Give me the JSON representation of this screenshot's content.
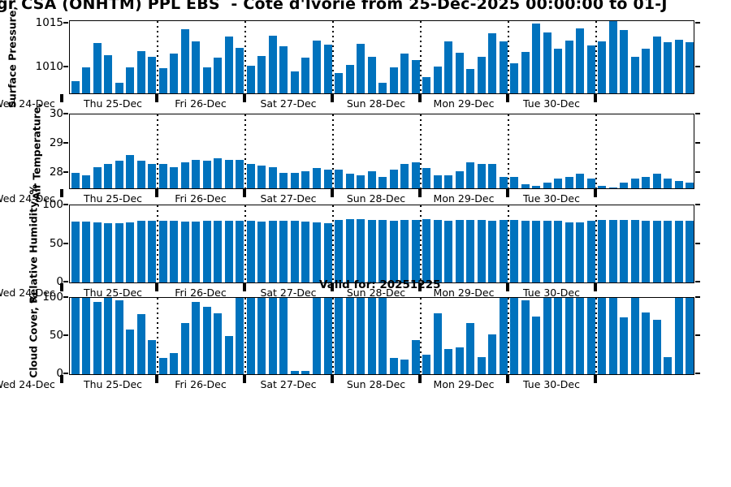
{
  "title": "gr CSA (ONHTM) PPL EBS  - Cote d'Ivorie from 25-Dec-2025 00:00:00 to 01-J",
  "annotation": "Valid for: 20251225",
  "bar_color": "#0072BD",
  "x_axis": {
    "left_edge_label": "Wed 24-Dec",
    "day_labels": [
      "Thu 25-Dec",
      "Fri 26-Dec",
      "Sat 27-Dec",
      "Sun 28-Dec",
      "Mon 29-Dec",
      "Tue 30-Dec"
    ]
  },
  "chart_data": [
    {
      "type": "bar",
      "name": "surface-pressure",
      "ylabel": "Surface Pressure,",
      "yticks": [
        1015,
        1010
      ],
      "ylim": [
        1007,
        1015.3
      ],
      "values": [
        1008.4,
        1010.0,
        1012.8,
        1011.4,
        1008.2,
        1010.0,
        1011.9,
        1011.2,
        1009.9,
        1011.6,
        1014.4,
        1013.0,
        1010.0,
        1011.1,
        1013.5,
        1012.2,
        1010.2,
        1011.3,
        1013.6,
        1012.4,
        1009.5,
        1011.1,
        1013.1,
        1012.6,
        1009.3,
        1010.3,
        1012.7,
        1011.2,
        1008.2,
        1010.0,
        1011.6,
        1010.8,
        1008.9,
        1010.1,
        1013.0,
        1011.7,
        1009.8,
        1011.2,
        1013.9,
        1013.0,
        1010.5,
        1011.8,
        1015.0,
        1014.0,
        1012.1,
        1013.1,
        1014.5,
        1012.5,
        1013.0,
        1015.4,
        1014.3,
        1011.2,
        1012.1,
        1013.5,
        1012.9,
        1013.2,
        1012.9
      ]
    },
    {
      "type": "bar",
      "name": "air-temperature",
      "ylabel": "Air Temperature,",
      "yticks": [
        30,
        29,
        28
      ],
      "ylim": [
        27.46,
        30
      ],
      "values": [
        28.0,
        27.9,
        28.2,
        28.3,
        28.4,
        28.6,
        28.4,
        28.3,
        28.3,
        28.2,
        28.35,
        28.45,
        28.4,
        28.5,
        28.45,
        28.45,
        28.3,
        28.25,
        28.2,
        28.0,
        28.0,
        28.05,
        28.15,
        28.1,
        28.1,
        27.95,
        27.9,
        28.05,
        27.85,
        28.1,
        28.3,
        28.35,
        28.15,
        27.9,
        27.9,
        28.05,
        28.35,
        28.3,
        28.3,
        27.85,
        27.85,
        27.6,
        27.55,
        27.65,
        27.8,
        27.85,
        27.95,
        27.8,
        27.55,
        27.5,
        27.65,
        27.8,
        27.85,
        27.95,
        27.8,
        27.7,
        27.65
      ]
    },
    {
      "type": "bar",
      "name": "relative-humidity",
      "ylabel": "Relative Humidity, %",
      "yticks": [
        100,
        50,
        0
      ],
      "ylim": [
        0,
        100
      ],
      "values": [
        79,
        79,
        78,
        77,
        77,
        78,
        80,
        80,
        80,
        80,
        79,
        79,
        80,
        80,
        80,
        80,
        80,
        79,
        80,
        80,
        80,
        79,
        78,
        77,
        81,
        82,
        82,
        81,
        81,
        80,
        81,
        81,
        82,
        81,
        80,
        81,
        81,
        81,
        80,
        81,
        81,
        80,
        80,
        80,
        80,
        78,
        78,
        80,
        81,
        81,
        81,
        81,
        80,
        80,
        80,
        80,
        80
      ]
    },
    {
      "type": "bar",
      "name": "cloud-cover",
      "ylabel": "Cloud Cover, %",
      "yticks": [
        100,
        50,
        0
      ],
      "ylim": [
        0,
        100
      ],
      "values": [
        100,
        100,
        95,
        100,
        97,
        59,
        79,
        45,
        21,
        28,
        67,
        95,
        88,
        80,
        50,
        100,
        100,
        100,
        100,
        100,
        4,
        4,
        100,
        100,
        100,
        100,
        100,
        100,
        100,
        21,
        19,
        45,
        26,
        80,
        33,
        35,
        67,
        22,
        52,
        100,
        100,
        97,
        76,
        100,
        100,
        100,
        100,
        100,
        100,
        100,
        74,
        100,
        81,
        71,
        22,
        100,
        100
      ]
    }
  ]
}
